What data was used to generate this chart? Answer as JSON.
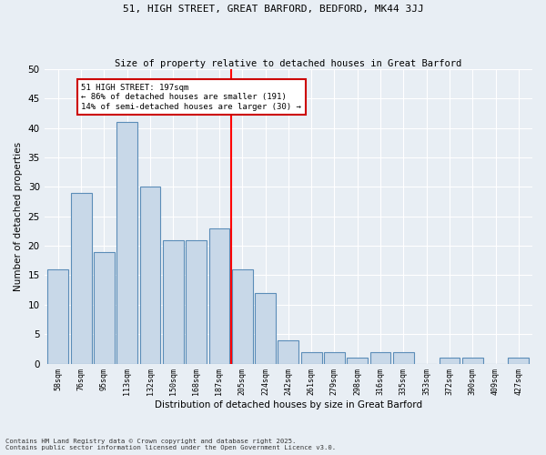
{
  "title1": "51, HIGH STREET, GREAT BARFORD, BEDFORD, MK44 3JJ",
  "title2": "Size of property relative to detached houses in Great Barford",
  "xlabel": "Distribution of detached houses by size in Great Barford",
  "ylabel": "Number of detached properties",
  "categories": [
    "58sqm",
    "76sqm",
    "95sqm",
    "113sqm",
    "132sqm",
    "150sqm",
    "168sqm",
    "187sqm",
    "205sqm",
    "224sqm",
    "242sqm",
    "261sqm",
    "279sqm",
    "298sqm",
    "316sqm",
    "335sqm",
    "353sqm",
    "372sqm",
    "390sqm",
    "409sqm",
    "427sqm"
  ],
  "values": [
    16,
    29,
    19,
    41,
    30,
    21,
    21,
    23,
    16,
    12,
    4,
    2,
    2,
    1,
    2,
    2,
    0,
    1,
    1,
    0,
    1
  ],
  "bar_color": "#c8d8e8",
  "bar_edge_color": "#5b8db8",
  "red_line_index": 8,
  "annotation_text": "51 HIGH STREET: 197sqm\n← 86% of detached houses are smaller (191)\n14% of semi-detached houses are larger (30) →",
  "annotation_box_color": "#ffffff",
  "annotation_box_edge": "#cc0000",
  "ylim": [
    0,
    50
  ],
  "yticks": [
    0,
    5,
    10,
    15,
    20,
    25,
    30,
    35,
    40,
    45,
    50
  ],
  "background_color": "#e8eef4",
  "grid_color": "#ffffff",
  "footer": "Contains HM Land Registry data © Crown copyright and database right 2025.\nContains public sector information licensed under the Open Government Licence v3.0."
}
